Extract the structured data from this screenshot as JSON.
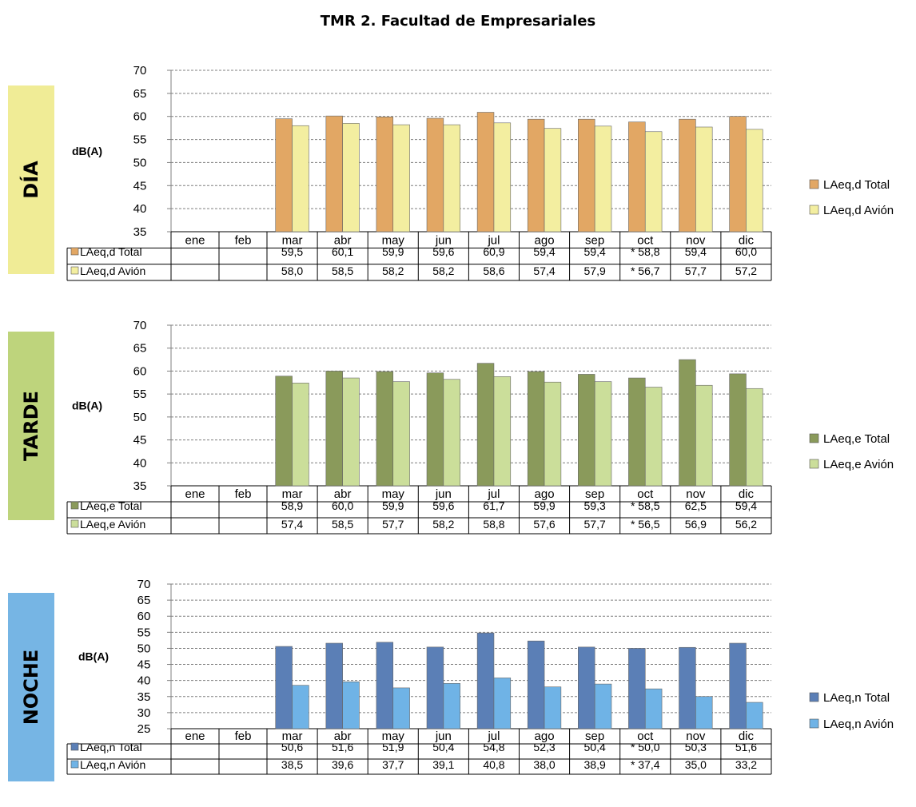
{
  "page_title": "TMR 2. Facultad de Empresariales",
  "colors": {
    "gridline": "#7f7f7f",
    "axis": "#7f7f7f",
    "border": "#000000"
  },
  "chart_data": [
    {
      "type": "bar",
      "section_label": "DÍA",
      "band_color": "#f0ec96",
      "ylabel": "dB(A)",
      "ylim": [
        35,
        70
      ],
      "ytick_step": 5,
      "grid": true,
      "legend_position": "right",
      "categories": [
        "ene",
        "feb",
        "mar",
        "abr",
        "may",
        "jun",
        "jul",
        "ago",
        "sep",
        "oct",
        "nov",
        "dic"
      ],
      "series": [
        {
          "name": "LAeq,d Total",
          "color": "#e2a764",
          "values": [
            null,
            null,
            59.5,
            60.1,
            59.9,
            59.6,
            60.9,
            59.4,
            59.4,
            58.8,
            59.4,
            60.0
          ],
          "labels": [
            "",
            "",
            "59,5",
            "60,1",
            "59,9",
            "59,6",
            "60,9",
            "59,4",
            "59,4",
            "* 58,8",
            "59,4",
            "60,0"
          ]
        },
        {
          "name": "LAeq,d Avión",
          "color": "#f3eea0",
          "values": [
            null,
            null,
            58.0,
            58.5,
            58.2,
            58.2,
            58.6,
            57.4,
            57.9,
            56.7,
            57.7,
            57.2
          ],
          "labels": [
            "",
            "",
            "58,0",
            "58,5",
            "58,2",
            "58,2",
            "58,6",
            "57,4",
            "57,9",
            "* 56,7",
            "57,7",
            "57,2"
          ]
        }
      ]
    },
    {
      "type": "bar",
      "section_label": "TARDE",
      "band_color": "#bed47c",
      "ylabel": "dB(A)",
      "ylim": [
        35,
        70
      ],
      "ytick_step": 5,
      "grid": true,
      "legend_position": "right",
      "categories": [
        "ene",
        "feb",
        "mar",
        "abr",
        "may",
        "jun",
        "jul",
        "ago",
        "sep",
        "oct",
        "nov",
        "dic"
      ],
      "series": [
        {
          "name": "LAeq,e Total",
          "color": "#8a9a5b",
          "values": [
            null,
            null,
            58.9,
            60.0,
            59.9,
            59.6,
            61.7,
            59.9,
            59.3,
            58.5,
            62.5,
            59.4
          ],
          "labels": [
            "",
            "",
            "58,9",
            "60,0",
            "59,9",
            "59,6",
            "61,7",
            "59,9",
            "59,3",
            "* 58,5",
            "62,5",
            "59,4"
          ]
        },
        {
          "name": "LAeq,e Avión",
          "color": "#cbde9a",
          "values": [
            null,
            null,
            57.4,
            58.5,
            57.7,
            58.2,
            58.8,
            57.6,
            57.7,
            56.5,
            56.9,
            56.2
          ],
          "labels": [
            "",
            "",
            "57,4",
            "58,5",
            "57,7",
            "58,2",
            "58,8",
            "57,6",
            "57,7",
            "* 56,5",
            "56,9",
            "56,2"
          ]
        }
      ]
    },
    {
      "type": "bar",
      "section_label": "NOCHE",
      "band_color": "#76b5e4",
      "ylabel": "dB(A)",
      "ylim": [
        25,
        70
      ],
      "ytick_step": 5,
      "grid": true,
      "legend_position": "right",
      "categories": [
        "ene",
        "feb",
        "mar",
        "abr",
        "may",
        "jun",
        "jul",
        "ago",
        "sep",
        "oct",
        "nov",
        "dic"
      ],
      "series": [
        {
          "name": "LAeq,n Total",
          "color": "#5b7fb6",
          "values": [
            null,
            null,
            50.6,
            51.6,
            51.9,
            50.4,
            54.8,
            52.3,
            50.4,
            50.0,
            50.3,
            51.6
          ],
          "labels": [
            "",
            "",
            "50,6",
            "51,6",
            "51,9",
            "50,4",
            "54,8",
            "52,3",
            "50,4",
            "* 50,0",
            "50,3",
            "51,6"
          ]
        },
        {
          "name": "LAeq,n Avión",
          "color": "#6fb3e6",
          "values": [
            null,
            null,
            38.5,
            39.6,
            37.7,
            39.1,
            40.8,
            38.0,
            38.9,
            37.4,
            35.0,
            33.2
          ],
          "labels": [
            "",
            "",
            "38,5",
            "39,6",
            "37,7",
            "39,1",
            "40,8",
            "38,0",
            "38,9",
            "* 37,4",
            "35,0",
            "33,2"
          ]
        }
      ]
    }
  ]
}
